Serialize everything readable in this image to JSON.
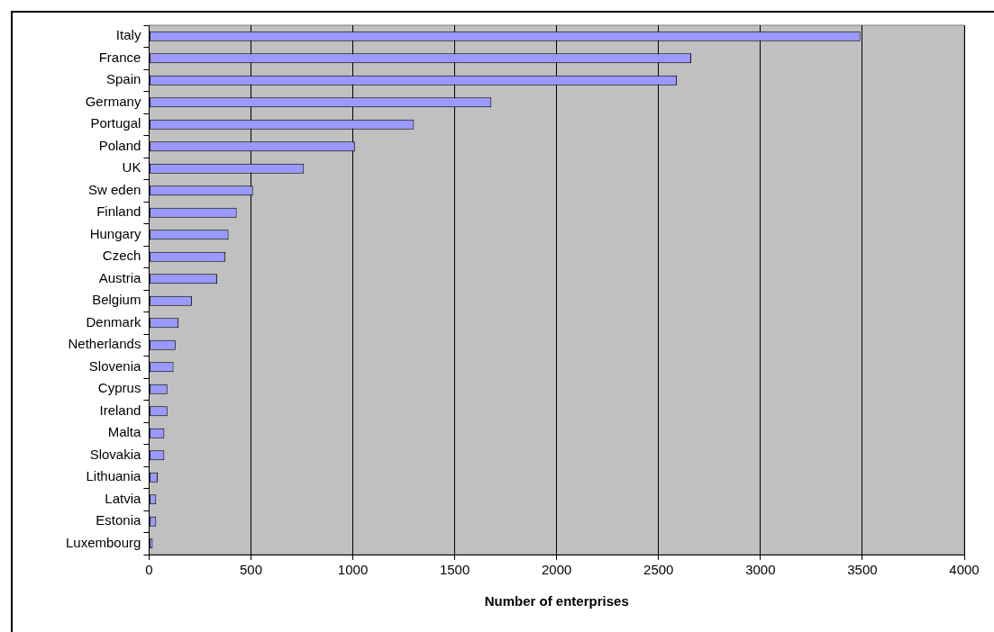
{
  "chart_data": {
    "type": "bar",
    "orientation": "horizontal",
    "xlabel": "Number of enterprises",
    "categories": [
      "Italy",
      "France",
      "Spain",
      "Germany",
      "Portugal",
      "Poland",
      "UK",
      "Sw eden",
      "Finland",
      "Hungary",
      "Czech",
      "Austria",
      "Belgium",
      "Denmark",
      "Netherlands",
      "Slovenia",
      "Cyprus",
      "Ireland",
      "Malta",
      "Slovakia",
      "Lithuania",
      "Latvia",
      "Estonia",
      "Luxembourg"
    ],
    "values": [
      3490,
      2660,
      2590,
      1680,
      1300,
      1010,
      760,
      510,
      430,
      390,
      375,
      335,
      210,
      145,
      130,
      120,
      90,
      90,
      75,
      75,
      43,
      35,
      35,
      18
    ],
    "color": "#9999ff",
    "xlim": [
      0,
      4000
    ],
    "xticks": [
      0,
      500,
      1000,
      1500,
      2000,
      2500,
      3000,
      3500,
      4000
    ],
    "grid": "x",
    "legend": false
  }
}
